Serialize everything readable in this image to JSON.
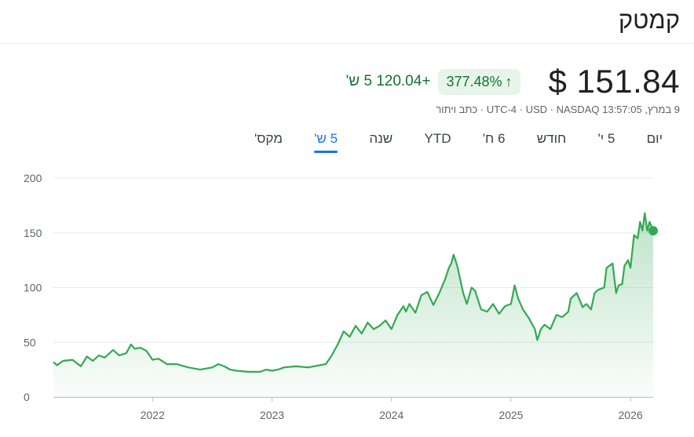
{
  "header": {
    "title": "קמטק",
    "price": "$ 151.84",
    "change_pct": "377.48%",
    "change_abs": "+120.04 5 ש'",
    "meta": "9 במרץ, 13:57:05 UTC-4 · USD · NASDAQ · כתב ויתור"
  },
  "tabs": [
    {
      "label": "יום"
    },
    {
      "label": "5 י'"
    },
    {
      "label": "חודש"
    },
    {
      "label": "6 ח'"
    },
    {
      "label": "YTD"
    },
    {
      "label": "שנה"
    },
    {
      "label": "5 ש'",
      "active": true
    },
    {
      "label": "מקס'"
    }
  ],
  "colors": {
    "line": "#34a853",
    "fill_top": "#34a853",
    "grid": "#e8eaed",
    "badge_bg": "#e6f4ea",
    "positive": "#137333",
    "active_tab": "#1a73e8"
  },
  "icons": {
    "change_arrow": "arrow-up-icon"
  },
  "chart_data": {
    "type": "area",
    "title": "",
    "xlabel": "",
    "ylabel": "",
    "ylim": [
      0,
      200
    ],
    "xlim": [
      2021.17,
      2026.19
    ],
    "y_ticks": [
      "0",
      "50",
      "100",
      "150",
      "200"
    ],
    "x_ticks": [
      {
        "label": "2022",
        "value": 2022.0
      },
      {
        "label": "2023",
        "value": 2023.0
      },
      {
        "label": "2024",
        "value": 2024.0
      },
      {
        "label": "2025",
        "value": 2025.0
      },
      {
        "label": "2026",
        "value": 2026.0
      }
    ],
    "grid": true,
    "series": [
      {
        "x": [
          2021.17,
          2021.2,
          2021.25,
          2021.33,
          2021.4,
          2021.45,
          2021.5,
          2021.55,
          2021.6,
          2021.67,
          2021.72,
          2021.78,
          2021.82,
          2021.85,
          2021.9,
          2021.95,
          2022.0,
          2022.05,
          2022.12,
          2022.2,
          2022.3,
          2022.4,
          2022.5,
          2022.55,
          2022.6,
          2022.65,
          2022.7,
          2022.8,
          2022.9,
          2022.95,
          2023.0,
          2023.05,
          2023.1,
          2023.2,
          2023.3,
          2023.35,
          2023.4,
          2023.45,
          2023.5,
          2023.55,
          2023.6,
          2023.65,
          2023.7,
          2023.75,
          2023.8,
          2023.85,
          2023.9,
          2023.95,
          2024.0,
          2024.05,
          2024.1,
          2024.12,
          2024.15,
          2024.2,
          2024.25,
          2024.3,
          2024.35,
          2024.4,
          2024.45,
          2024.48,
          2024.5,
          2024.52,
          2024.55,
          2024.6,
          2024.63,
          2024.67,
          2024.7,
          2024.75,
          2024.8,
          2024.85,
          2024.9,
          2024.95,
          2025.0,
          2025.03,
          2025.06,
          2025.1,
          2025.15,
          2025.2,
          2025.22,
          2025.25,
          2025.28,
          2025.33,
          2025.38,
          2025.43,
          2025.48,
          2025.5,
          2025.55,
          2025.6,
          2025.63,
          2025.67,
          2025.7,
          2025.73,
          2025.78,
          2025.8,
          2025.85,
          2025.88,
          2025.9,
          2025.93,
          2025.95,
          2025.98,
          2026.0,
          2026.03,
          2026.06,
          2026.08,
          2026.1,
          2026.12,
          2026.14,
          2026.16,
          2026.19
        ],
        "y": [
          32,
          29,
          33,
          34,
          28,
          37,
          33,
          38,
          36,
          43,
          38,
          40,
          48,
          44,
          45,
          42,
          34,
          35,
          30,
          30,
          27,
          25,
          27,
          30,
          28,
          25,
          24,
          23,
          23,
          25,
          24,
          25,
          27,
          28,
          27,
          28,
          29,
          30,
          38,
          48,
          60,
          55,
          65,
          58,
          68,
          62,
          65,
          70,
          62,
          75,
          83,
          78,
          85,
          77,
          93,
          96,
          84,
          95,
          108,
          118,
          122,
          130,
          120,
          95,
          85,
          100,
          97,
          80,
          78,
          85,
          76,
          83,
          85,
          102,
          90,
          80,
          72,
          62,
          52,
          62,
          66,
          62,
          75,
          73,
          78,
          90,
          95,
          82,
          85,
          80,
          95,
          98,
          100,
          118,
          122,
          95,
          102,
          103,
          120,
          125,
          118,
          148,
          145,
          160,
          152,
          168,
          152,
          160,
          151.84
        ]
      }
    ]
  }
}
